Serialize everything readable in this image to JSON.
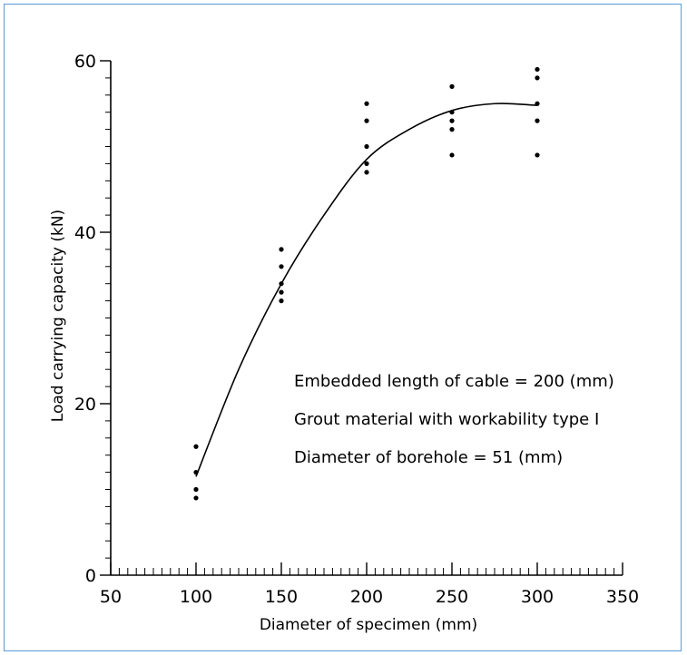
{
  "chart_data": {
    "type": "scatter",
    "title": "",
    "xlabel": "Diameter of specimen (mm)",
    "ylabel": "Load carrying capacity (kN)",
    "xlim": [
      50,
      350
    ],
    "ylim": [
      0,
      60
    ],
    "x_ticks": [
      "50",
      "100",
      "150",
      "200",
      "250",
      "300",
      "350"
    ],
    "y_ticks": [
      "0",
      "20",
      "40",
      "60"
    ],
    "grid": false,
    "series": [
      {
        "points": [
          {
            "x": 100,
            "y": 15
          },
          {
            "x": 100,
            "y": 12
          },
          {
            "x": 100,
            "y": 10
          },
          {
            "x": 100,
            "y": 9
          },
          {
            "x": 150,
            "y": 38
          },
          {
            "x": 150,
            "y": 36
          },
          {
            "x": 150,
            "y": 34
          },
          {
            "x": 150,
            "y": 33
          },
          {
            "x": 150,
            "y": 32
          },
          {
            "x": 200,
            "y": 55
          },
          {
            "x": 200,
            "y": 53
          },
          {
            "x": 200,
            "y": 50
          },
          {
            "x": 200,
            "y": 48
          },
          {
            "x": 200,
            "y": 47
          },
          {
            "x": 250,
            "y": 57
          },
          {
            "x": 250,
            "y": 54
          },
          {
            "x": 250,
            "y": 53
          },
          {
            "x": 250,
            "y": 52
          },
          {
            "x": 250,
            "y": 49
          },
          {
            "x": 300,
            "y": 59
          },
          {
            "x": 300,
            "y": 58
          },
          {
            "x": 300,
            "y": 55
          },
          {
            "x": 300,
            "y": 53
          },
          {
            "x": 300,
            "y": 49
          }
        ]
      }
    ],
    "fit_curve": [
      {
        "x": 100,
        "y": 11.5
      },
      {
        "x": 125,
        "y": 24
      },
      {
        "x": 150,
        "y": 34
      },
      {
        "x": 175,
        "y": 42
      },
      {
        "x": 200,
        "y": 48.5
      },
      {
        "x": 225,
        "y": 52
      },
      {
        "x": 250,
        "y": 54.2
      },
      {
        "x": 275,
        "y": 55
      },
      {
        "x": 300,
        "y": 54.8
      }
    ],
    "annotations": [
      "Embedded length of cable = 200 (mm)",
      "Grout material with workability type I",
      "Diameter of borehole = 51 (mm)"
    ]
  }
}
